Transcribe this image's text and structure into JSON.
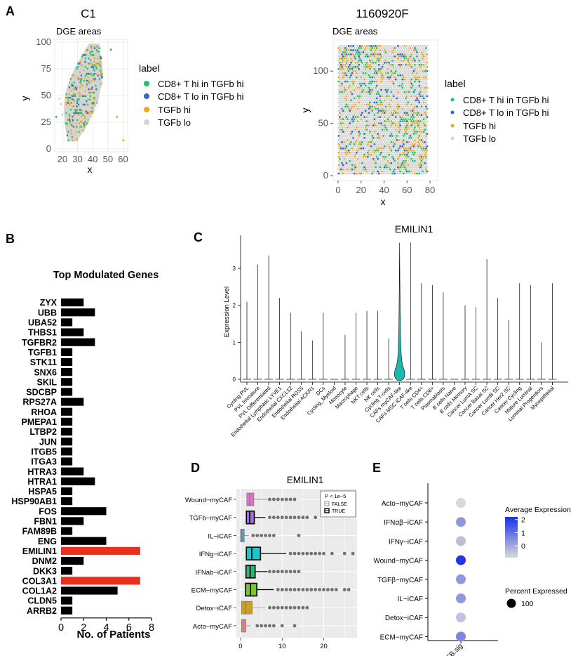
{
  "panels": {
    "A": "A",
    "B": "B",
    "C": "C",
    "D": "D",
    "E": "E"
  },
  "colors": {
    "cd8_hi": "#1ec26a",
    "cd8_lo": "#3a66c9",
    "tgfb_hi": "#f2a51f",
    "tgfb_lo": "#d3d3d3",
    "red": "#ee2d1b",
    "grid": "#ebebeb",
    "panel_bg": "#ebebeb",
    "teal": "#1fb8b0"
  },
  "panelA": {
    "left": {
      "sample": "C1",
      "subtitle": "DGE areas",
      "xlabel": "x",
      "ylabel": "y",
      "xticks": [
        20,
        30,
        40,
        50,
        60
      ],
      "yticks": [
        0,
        25,
        50,
        75,
        100
      ]
    },
    "right": {
      "sample": "1160920F",
      "subtitle": "DGE areas",
      "xlabel": "x",
      "ylabel": "y",
      "xticks": [
        0,
        20,
        40,
        60,
        80
      ],
      "yticks": [
        0,
        50,
        100
      ]
    },
    "legend": {
      "title": "label",
      "items": [
        "CD8+ T hi in TGFb hi",
        "CD8+ T lo in TGFb hi",
        "TGFb hi",
        "TGFb lo"
      ]
    }
  },
  "chart_data": [
    {
      "type": "bar",
      "panel": "B",
      "title": "Top Modulated Genes",
      "xlabel": "No. of Patients",
      "ylabel": "",
      "xlim": [
        0,
        8
      ],
      "xticks": [
        0,
        2,
        4,
        6,
        8
      ],
      "categories": [
        "ZYX",
        "UBB",
        "UBA52",
        "THBS1",
        "TGFBR2",
        "TGFB1",
        "STK11",
        "SNX6",
        "SKIL",
        "SDCBP",
        "RPS27A",
        "RHOA",
        "PMEPA1",
        "LTBP2",
        "JUN",
        "ITGB5",
        "ITGA3",
        "HTRA3",
        "HTRA1",
        "HSPA5",
        "HSP90AB1",
        "FOS",
        "FBN1",
        "FAM89B",
        "ENG",
        "EMILIN1",
        "DNM2",
        "DKK3",
        "COL3A1",
        "COL1A2",
        "CLDN5",
        "ARRB2"
      ],
      "values": [
        2,
        3,
        1,
        2,
        3,
        1,
        1,
        1,
        1,
        1,
        2,
        1,
        1,
        1,
        1,
        1,
        1,
        2,
        3,
        1,
        1,
        4,
        2,
        1,
        4,
        7,
        2,
        1,
        7,
        5,
        1,
        1
      ],
      "highlight": [
        "EMILIN1",
        "COL3A1"
      ]
    },
    {
      "type": "violin",
      "panel": "C",
      "title": "EMILIN1",
      "ylabel": "Expression Level",
      "ylim": [
        0,
        3.8
      ],
      "yticks": [
        0,
        1,
        2,
        3
      ],
      "categories": [
        "Cycling PVL",
        "PVL Immature",
        "PVL Differentiated",
        "Endothelial Lymphatic LYVE1",
        "Endothelial CXCL12",
        "Endothelial RGS5",
        "Endothelial ACKR1",
        "DCs",
        "Cycling_Myeloid",
        "Monocyte",
        "Macrophage",
        "NKT cells",
        "NK cells",
        "Cycling T-cells",
        "CAFs myCAF-like",
        "CAFs MSC iCAF-like",
        "T cells CD4+",
        "T cells CD8+",
        "Plasmablasts",
        "B cells Naive",
        "B cells Memory",
        "Cancer LumA SC",
        "Cancer Basal SC",
        "Cancer LumB SC",
        "Cancer Her2 SC",
        "Cancer Cycling",
        "Mature Luminal",
        "Luminal Progenitors",
        "Myoepithelial"
      ],
      "max_values": [
        2.1,
        3.1,
        3.35,
        2.2,
        1.8,
        1.3,
        1.05,
        1.8,
        0,
        1.2,
        1.8,
        1.85,
        1.85,
        1.1,
        3.7,
        3.7,
        2.6,
        2.55,
        2.35,
        0,
        2.0,
        1.95,
        3.25,
        2.2,
        1.6,
        2.6,
        2.55,
        1.0,
        2.6
      ],
      "highlight": "CAFs myCAF-like"
    },
    {
      "type": "boxplot",
      "panel": "D",
      "title": "EMILIN1",
      "xlim": [
        -1,
        28
      ],
      "xticks": [
        0,
        10,
        20
      ],
      "legend": {
        "title": "P < 1e−5",
        "items": [
          "FALSE",
          "TRUE"
        ]
      },
      "categories": [
        "Wound−myCAF",
        "TGFb−myCAF",
        "IL−iCAF",
        "IFNg−iCAF",
        "IFNab−iCAF",
        "ECM−myCAF",
        "Detox−iCAF",
        "Acto−myCAF"
      ],
      "colors": [
        "#e070c8",
        "#a070e0",
        "#3aa7df",
        "#1ec4cc",
        "#2bb673",
        "#7cc52a",
        "#c9a21a",
        "#f08080"
      ],
      "significant": [
        false,
        true,
        false,
        true,
        true,
        true,
        false,
        false
      ],
      "stats": [
        {
          "q1": 1.5,
          "median": 2.2,
          "q3": 3.2,
          "whisker": 6.5,
          "outliers": [
            7,
            8,
            9,
            10,
            11,
            12,
            13
          ]
        },
        {
          "q1": 1.4,
          "median": 2.2,
          "q3": 3.3,
          "whisker": 6.0,
          "outliers": [
            7,
            8,
            9,
            10,
            11,
            12,
            13,
            14,
            15,
            16,
            18
          ]
        },
        {
          "q1": 0,
          "median": 0.3,
          "q3": 0.9,
          "whisker": 2.0,
          "outliers": [
            3,
            4,
            5,
            6,
            7,
            8,
            14
          ]
        },
        {
          "q1": 1.4,
          "median": 2.7,
          "q3": 4.8,
          "whisker": 11,
          "outliers": [
            12,
            13,
            14,
            15,
            16,
            17,
            18,
            19,
            20,
            22,
            25,
            27
          ]
        },
        {
          "q1": 1.3,
          "median": 2.3,
          "q3": 3.5,
          "whisker": 6.5,
          "outliers": [
            7,
            8,
            9,
            10,
            11,
            12,
            13,
            14
          ]
        },
        {
          "q1": 1.2,
          "median": 2.4,
          "q3": 3.9,
          "whisker": 8.0,
          "outliers": [
            9,
            10,
            11,
            12,
            13,
            14,
            15,
            16,
            17,
            18,
            19,
            20,
            21,
            22,
            23,
            25,
            26
          ]
        },
        {
          "q1": 0.2,
          "median": 1.2,
          "q3": 2.8,
          "whisker": 6.0,
          "outliers": [
            7,
            8,
            9,
            10,
            11,
            12,
            13,
            14,
            15,
            16
          ]
        },
        {
          "q1": 0.2,
          "median": 0.6,
          "q3": 1.3,
          "whisker": 2.5,
          "outliers": [
            4,
            5,
            6,
            7,
            8,
            10,
            13
          ]
        }
      ]
    },
    {
      "type": "dotplot",
      "panel": "E",
      "categories": [
        "Acto−myCAF",
        "IFNαβ−iCAF",
        "IFNγ−iCAF",
        "Wound−myCAF",
        "TGFβ−myCAF",
        "IL−iCAF",
        "Detox−iCAF",
        "ECM−myCAF"
      ],
      "x": "TGFB.sig",
      "average_expression": [
        -0.9,
        0.3,
        -0.4,
        2.1,
        0.3,
        0.3,
        -0.5,
        0.6
      ],
      "percent_expressed": [
        100,
        100,
        100,
        100,
        100,
        100,
        100,
        100
      ],
      "color_legend": {
        "title": "Average Expression",
        "ticks": [
          2,
          1,
          0
        ],
        "range": [
          -0.9,
          2.2
        ]
      },
      "size_legend": {
        "title": "Percent Expressed",
        "value": "100"
      }
    }
  ]
}
